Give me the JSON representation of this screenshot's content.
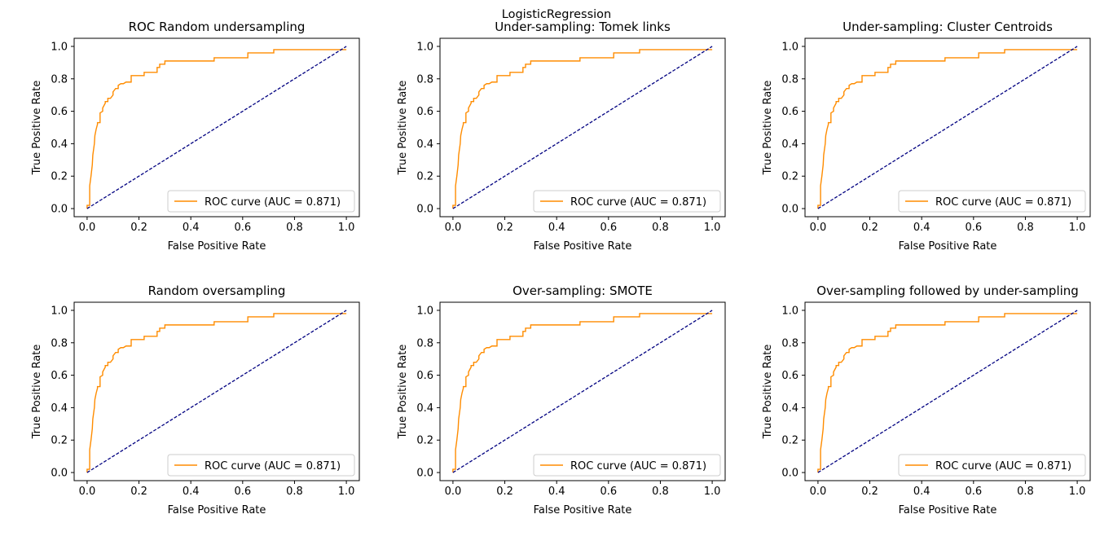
{
  "figure": {
    "suptitle": "LogisticRegression"
  },
  "colors": {
    "roc_line": "#ff8c00",
    "diagonal": "#000080",
    "axes": "#000000",
    "legend_border": "#cccccc"
  },
  "chart_data": [
    {
      "type": "line",
      "title": "ROC Random undersampling",
      "xlabel": "False Positive Rate",
      "ylabel": "True Positive Rate",
      "xlim": [
        -0.05,
        1.05
      ],
      "ylim": [
        -0.05,
        1.05
      ],
      "xticks": [
        "0.0",
        "0.2",
        "0.4",
        "0.6",
        "0.8",
        "1.0"
      ],
      "yticks": [
        "0.0",
        "0.2",
        "0.4",
        "0.6",
        "0.8",
        "1.0"
      ],
      "legend_position": "lower-right",
      "grid": false,
      "series": [
        {
          "name": "ROC curve (AUC = 0.871)",
          "style": "solid",
          "x": [
            0,
            0,
            0.01,
            0.01,
            0.015,
            0.02,
            0.022,
            0.028,
            0.03,
            0.035,
            0.04,
            0.04,
            0.05,
            0.05,
            0.06,
            0.06,
            0.07,
            0.07,
            0.08,
            0.08,
            0.09,
            0.1,
            0.1,
            0.11,
            0.12,
            0.12,
            0.13,
            0.13,
            0.14,
            0.15,
            0.17,
            0.17,
            0.18,
            0.18,
            0.22,
            0.22,
            0.27,
            0.27,
            0.28,
            0.28,
            0.3,
            0.3,
            0.49,
            0.49,
            0.62,
            0.62,
            0.72,
            0.72,
            1
          ],
          "y": [
            0,
            0.02,
            0.02,
            0.14,
            0.2,
            0.27,
            0.33,
            0.4,
            0.45,
            0.49,
            0.52,
            0.53,
            0.53,
            0.59,
            0.6,
            0.62,
            0.65,
            0.66,
            0.66,
            0.68,
            0.68,
            0.7,
            0.72,
            0.74,
            0.74,
            0.76,
            0.77,
            0.77,
            0.77,
            0.78,
            0.78,
            0.82,
            0.82,
            0.82,
            0.82,
            0.84,
            0.84,
            0.87,
            0.87,
            0.89,
            0.89,
            0.91,
            0.91,
            0.93,
            0.93,
            0.96,
            0.96,
            0.98,
            0.98
          ]
        },
        {
          "name": "",
          "style": "dashed",
          "x": [
            0,
            1
          ],
          "y": [
            0,
            1
          ]
        }
      ]
    },
    {
      "type": "line",
      "title": "Under-sampling: Tomek links",
      "xlabel": "False Positive Rate",
      "ylabel": "True Positive Rate",
      "xlim": [
        -0.05,
        1.05
      ],
      "ylim": [
        -0.05,
        1.05
      ],
      "xticks": [
        "0.0",
        "0.2",
        "0.4",
        "0.6",
        "0.8",
        "1.0"
      ],
      "yticks": [
        "0.0",
        "0.2",
        "0.4",
        "0.6",
        "0.8",
        "1.0"
      ],
      "legend_position": "lower-right",
      "grid": false,
      "series": [
        {
          "name": "ROC curve (AUC = 0.871)",
          "style": "solid",
          "x": [
            0,
            0,
            0.01,
            0.01,
            0.015,
            0.02,
            0.022,
            0.028,
            0.03,
            0.035,
            0.04,
            0.04,
            0.05,
            0.05,
            0.06,
            0.06,
            0.07,
            0.07,
            0.08,
            0.08,
            0.09,
            0.1,
            0.1,
            0.11,
            0.12,
            0.12,
            0.13,
            0.13,
            0.14,
            0.15,
            0.17,
            0.17,
            0.18,
            0.18,
            0.22,
            0.22,
            0.27,
            0.27,
            0.28,
            0.28,
            0.3,
            0.3,
            0.49,
            0.49,
            0.62,
            0.62,
            0.72,
            0.72,
            1
          ],
          "y": [
            0,
            0.02,
            0.02,
            0.14,
            0.2,
            0.27,
            0.33,
            0.4,
            0.45,
            0.49,
            0.52,
            0.53,
            0.53,
            0.59,
            0.6,
            0.62,
            0.65,
            0.66,
            0.66,
            0.68,
            0.68,
            0.7,
            0.72,
            0.74,
            0.74,
            0.76,
            0.77,
            0.77,
            0.77,
            0.78,
            0.78,
            0.82,
            0.82,
            0.82,
            0.82,
            0.84,
            0.84,
            0.87,
            0.87,
            0.89,
            0.89,
            0.91,
            0.91,
            0.93,
            0.93,
            0.96,
            0.96,
            0.98,
            0.98
          ]
        },
        {
          "name": "",
          "style": "dashed",
          "x": [
            0,
            1
          ],
          "y": [
            0,
            1
          ]
        }
      ]
    },
    {
      "type": "line",
      "title": "Under-sampling: Cluster Centroids",
      "xlabel": "False Positive Rate",
      "ylabel": "True Positive Rate",
      "xlim": [
        -0.05,
        1.05
      ],
      "ylim": [
        -0.05,
        1.05
      ],
      "xticks": [
        "0.0",
        "0.2",
        "0.4",
        "0.6",
        "0.8",
        "1.0"
      ],
      "yticks": [
        "0.0",
        "0.2",
        "0.4",
        "0.6",
        "0.8",
        "1.0"
      ],
      "legend_position": "lower-right",
      "grid": false,
      "series": [
        {
          "name": "ROC curve (AUC = 0.871)",
          "style": "solid",
          "x": [
            0,
            0,
            0.01,
            0.01,
            0.015,
            0.02,
            0.022,
            0.028,
            0.03,
            0.035,
            0.04,
            0.04,
            0.05,
            0.05,
            0.06,
            0.06,
            0.07,
            0.07,
            0.08,
            0.08,
            0.09,
            0.1,
            0.1,
            0.11,
            0.12,
            0.12,
            0.13,
            0.13,
            0.14,
            0.15,
            0.17,
            0.17,
            0.18,
            0.18,
            0.22,
            0.22,
            0.27,
            0.27,
            0.28,
            0.28,
            0.3,
            0.3,
            0.49,
            0.49,
            0.62,
            0.62,
            0.72,
            0.72,
            1
          ],
          "y": [
            0,
            0.02,
            0.02,
            0.14,
            0.2,
            0.27,
            0.33,
            0.4,
            0.45,
            0.49,
            0.52,
            0.53,
            0.53,
            0.59,
            0.6,
            0.62,
            0.65,
            0.66,
            0.66,
            0.68,
            0.68,
            0.7,
            0.72,
            0.74,
            0.74,
            0.76,
            0.77,
            0.77,
            0.77,
            0.78,
            0.78,
            0.82,
            0.82,
            0.82,
            0.82,
            0.84,
            0.84,
            0.87,
            0.87,
            0.89,
            0.89,
            0.91,
            0.91,
            0.93,
            0.93,
            0.96,
            0.96,
            0.98,
            0.98
          ]
        },
        {
          "name": "",
          "style": "dashed",
          "x": [
            0,
            1
          ],
          "y": [
            0,
            1
          ]
        }
      ]
    },
    {
      "type": "line",
      "title": "Random oversampling",
      "xlabel": "False Positive Rate",
      "ylabel": "True Positive Rate",
      "xlim": [
        -0.05,
        1.05
      ],
      "ylim": [
        -0.05,
        1.05
      ],
      "xticks": [
        "0.0",
        "0.2",
        "0.4",
        "0.6",
        "0.8",
        "1.0"
      ],
      "yticks": [
        "0.0",
        "0.2",
        "0.4",
        "0.6",
        "0.8",
        "1.0"
      ],
      "legend_position": "lower-right",
      "grid": false,
      "series": [
        {
          "name": "ROC curve (AUC = 0.871)",
          "style": "solid",
          "x": [
            0,
            0,
            0.01,
            0.01,
            0.015,
            0.02,
            0.022,
            0.028,
            0.03,
            0.035,
            0.04,
            0.04,
            0.05,
            0.05,
            0.06,
            0.06,
            0.07,
            0.07,
            0.08,
            0.08,
            0.09,
            0.1,
            0.1,
            0.11,
            0.12,
            0.12,
            0.13,
            0.13,
            0.14,
            0.15,
            0.17,
            0.17,
            0.18,
            0.18,
            0.22,
            0.22,
            0.27,
            0.27,
            0.28,
            0.28,
            0.3,
            0.3,
            0.49,
            0.49,
            0.62,
            0.62,
            0.72,
            0.72,
            1
          ],
          "y": [
            0,
            0.02,
            0.02,
            0.14,
            0.2,
            0.27,
            0.33,
            0.4,
            0.45,
            0.49,
            0.52,
            0.53,
            0.53,
            0.59,
            0.6,
            0.62,
            0.65,
            0.66,
            0.66,
            0.68,
            0.68,
            0.7,
            0.72,
            0.74,
            0.74,
            0.76,
            0.77,
            0.77,
            0.77,
            0.78,
            0.78,
            0.82,
            0.82,
            0.82,
            0.82,
            0.84,
            0.84,
            0.87,
            0.87,
            0.89,
            0.89,
            0.91,
            0.91,
            0.93,
            0.93,
            0.96,
            0.96,
            0.98,
            0.98
          ]
        },
        {
          "name": "",
          "style": "dashed",
          "x": [
            0,
            1
          ],
          "y": [
            0,
            1
          ]
        }
      ]
    },
    {
      "type": "line",
      "title": "Over-sampling: SMOTE",
      "xlabel": "False Positive Rate",
      "ylabel": "True Positive Rate",
      "xlim": [
        -0.05,
        1.05
      ],
      "ylim": [
        -0.05,
        1.05
      ],
      "xticks": [
        "0.0",
        "0.2",
        "0.4",
        "0.6",
        "0.8",
        "1.0"
      ],
      "yticks": [
        "0.0",
        "0.2",
        "0.4",
        "0.6",
        "0.8",
        "1.0"
      ],
      "legend_position": "lower-right",
      "grid": false,
      "series": [
        {
          "name": "ROC curve (AUC = 0.871)",
          "style": "solid",
          "x": [
            0,
            0,
            0.01,
            0.01,
            0.015,
            0.02,
            0.022,
            0.028,
            0.03,
            0.035,
            0.04,
            0.04,
            0.05,
            0.05,
            0.06,
            0.06,
            0.07,
            0.07,
            0.08,
            0.08,
            0.09,
            0.1,
            0.1,
            0.11,
            0.12,
            0.12,
            0.13,
            0.13,
            0.14,
            0.15,
            0.17,
            0.17,
            0.18,
            0.18,
            0.22,
            0.22,
            0.27,
            0.27,
            0.28,
            0.28,
            0.3,
            0.3,
            0.49,
            0.49,
            0.62,
            0.62,
            0.72,
            0.72,
            1
          ],
          "y": [
            0,
            0.02,
            0.02,
            0.14,
            0.2,
            0.27,
            0.33,
            0.4,
            0.45,
            0.49,
            0.52,
            0.53,
            0.53,
            0.59,
            0.6,
            0.62,
            0.65,
            0.66,
            0.66,
            0.68,
            0.68,
            0.7,
            0.72,
            0.74,
            0.74,
            0.76,
            0.77,
            0.77,
            0.77,
            0.78,
            0.78,
            0.82,
            0.82,
            0.82,
            0.82,
            0.84,
            0.84,
            0.87,
            0.87,
            0.89,
            0.89,
            0.91,
            0.91,
            0.93,
            0.93,
            0.96,
            0.96,
            0.98,
            0.98
          ]
        },
        {
          "name": "",
          "style": "dashed",
          "x": [
            0,
            1
          ],
          "y": [
            0,
            1
          ]
        }
      ]
    },
    {
      "type": "line",
      "title": "Over-sampling followed by under-sampling",
      "xlabel": "False Positive Rate",
      "ylabel": "True Positive Rate",
      "xlim": [
        -0.05,
        1.05
      ],
      "ylim": [
        -0.05,
        1.05
      ],
      "xticks": [
        "0.0",
        "0.2",
        "0.4",
        "0.6",
        "0.8",
        "1.0"
      ],
      "yticks": [
        "0.0",
        "0.2",
        "0.4",
        "0.6",
        "0.8",
        "1.0"
      ],
      "legend_position": "lower-right",
      "grid": false,
      "series": [
        {
          "name": "ROC curve (AUC = 0.871)",
          "style": "solid",
          "x": [
            0,
            0,
            0.01,
            0.01,
            0.015,
            0.02,
            0.022,
            0.028,
            0.03,
            0.035,
            0.04,
            0.04,
            0.05,
            0.05,
            0.06,
            0.06,
            0.07,
            0.07,
            0.08,
            0.08,
            0.09,
            0.1,
            0.1,
            0.11,
            0.12,
            0.12,
            0.13,
            0.13,
            0.14,
            0.15,
            0.17,
            0.17,
            0.18,
            0.18,
            0.22,
            0.22,
            0.27,
            0.27,
            0.28,
            0.28,
            0.3,
            0.3,
            0.49,
            0.49,
            0.62,
            0.62,
            0.72,
            0.72,
            1
          ],
          "y": [
            0,
            0.02,
            0.02,
            0.14,
            0.2,
            0.27,
            0.33,
            0.4,
            0.45,
            0.49,
            0.52,
            0.53,
            0.53,
            0.59,
            0.6,
            0.62,
            0.65,
            0.66,
            0.66,
            0.68,
            0.68,
            0.7,
            0.72,
            0.74,
            0.74,
            0.76,
            0.77,
            0.77,
            0.77,
            0.78,
            0.78,
            0.82,
            0.82,
            0.82,
            0.82,
            0.84,
            0.84,
            0.87,
            0.87,
            0.89,
            0.89,
            0.91,
            0.91,
            0.93,
            0.93,
            0.96,
            0.96,
            0.98,
            0.98
          ]
        },
        {
          "name": "",
          "style": "dashed",
          "x": [
            0,
            1
          ],
          "y": [
            0,
            1
          ]
        }
      ]
    }
  ]
}
